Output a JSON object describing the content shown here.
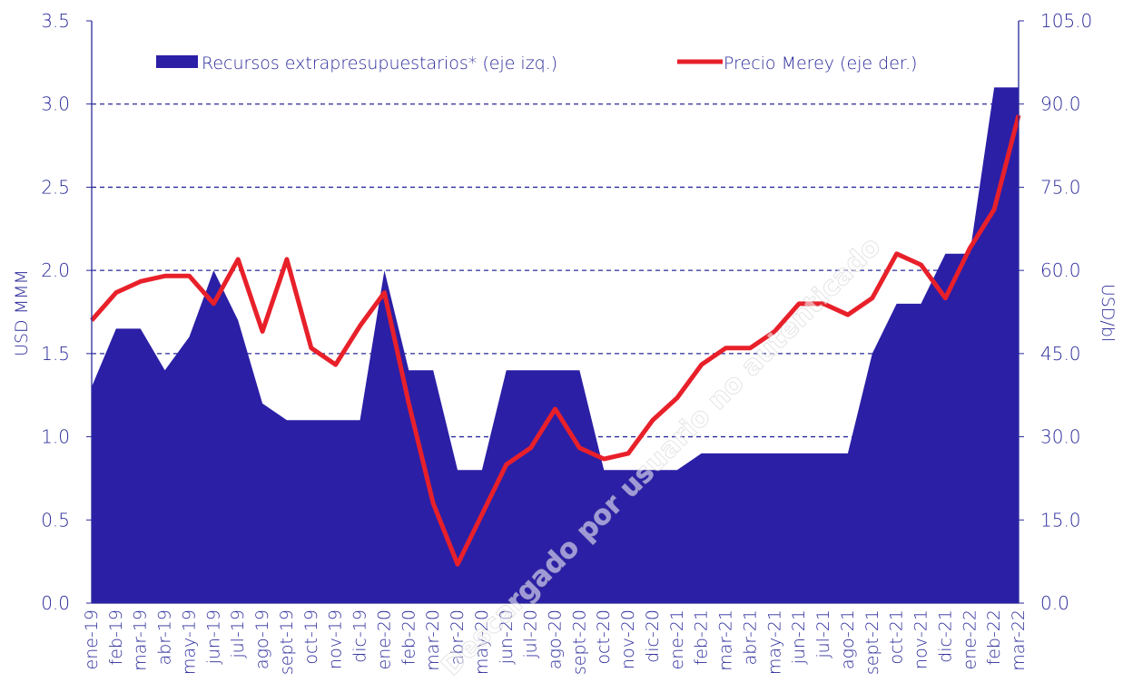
{
  "chart_data": {
    "type": "area-line",
    "categories": [
      "ene-19",
      "feb-19",
      "mar-19",
      "abr-19",
      "may-19",
      "jun-19",
      "jul-19",
      "ago-19",
      "sept-19",
      "oct-19",
      "nov-19",
      "dic-19",
      "ene-20",
      "feb-20",
      "mar-20",
      "abr-20",
      "may-20",
      "jun-20",
      "jul-20",
      "ago-20",
      "sept-20",
      "oct-20",
      "nov-20",
      "dic-20",
      "ene-21",
      "feb-21",
      "mar-21",
      "abr-21",
      "may-21",
      "jun-21",
      "jul-21",
      "ago-21",
      "sept-21",
      "oct-21",
      "nov-21",
      "dic-21",
      "ene-22",
      "feb-22",
      "mar-22"
    ],
    "series": [
      {
        "name": "Recursos extrapresupuestarios* (eje izq.)",
        "color": "#2b1fa6",
        "type": "area",
        "values": [
          1.3,
          1.65,
          1.65,
          1.4,
          1.6,
          2.0,
          1.7,
          1.2,
          1.1,
          1.1,
          1.1,
          1.1,
          2.0,
          1.4,
          1.4,
          0.8,
          0.8,
          1.4,
          1.4,
          1.4,
          1.4,
          0.8,
          0.8,
          0.8,
          0.8,
          0.9,
          0.9,
          0.9,
          0.9,
          0.9,
          0.9,
          0.9,
          1.5,
          1.8,
          1.8,
          2.1,
          2.1,
          3.1,
          3.1
        ]
      },
      {
        "name": "Precio Merey (eje der.)",
        "color": "#e8202a",
        "type": "line",
        "axis": "y2",
        "values": [
          51,
          56,
          58,
          59,
          59,
          54,
          62,
          49,
          62,
          46,
          43,
          50,
          56,
          36,
          18,
          7,
          16,
          25,
          28,
          35,
          28,
          26,
          27,
          33,
          37,
          43,
          46,
          46,
          49,
          54,
          54,
          52,
          55,
          63,
          61,
          55,
          64,
          71,
          88
        ]
      }
    ],
    "ylabel": "USD MMM",
    "y2label": "USD/bl",
    "ylim": [
      0,
      3.5
    ],
    "yticks": [
      {
        "value": 0,
        "label": "0.0"
      },
      {
        "value": 0.5,
        "label": "0.5"
      },
      {
        "value": 1,
        "label": "1.0"
      },
      {
        "value": 1.5,
        "label": "1.5"
      },
      {
        "value": 2,
        "label": "2.0"
      },
      {
        "value": 2.5,
        "label": "2.5"
      },
      {
        "value": 3,
        "label": "3.0"
      },
      {
        "value": 3.5,
        "label": "3.5"
      }
    ],
    "y2lim": [
      0,
      105
    ],
    "y2ticks": [
      {
        "value": 0,
        "label": "0.0"
      },
      {
        "value": 15,
        "label": "15.0"
      },
      {
        "value": 30,
        "label": "30.0"
      },
      {
        "value": 45,
        "label": "45.0"
      },
      {
        "value": 60,
        "label": "60.0"
      },
      {
        "value": 75,
        "label": "75.0"
      },
      {
        "value": 90,
        "label": "90.0"
      },
      {
        "value": 105,
        "label": "105.0"
      }
    ],
    "grid": true,
    "legend": "top",
    "watermark": "Descargado por usuario no autenticado"
  }
}
